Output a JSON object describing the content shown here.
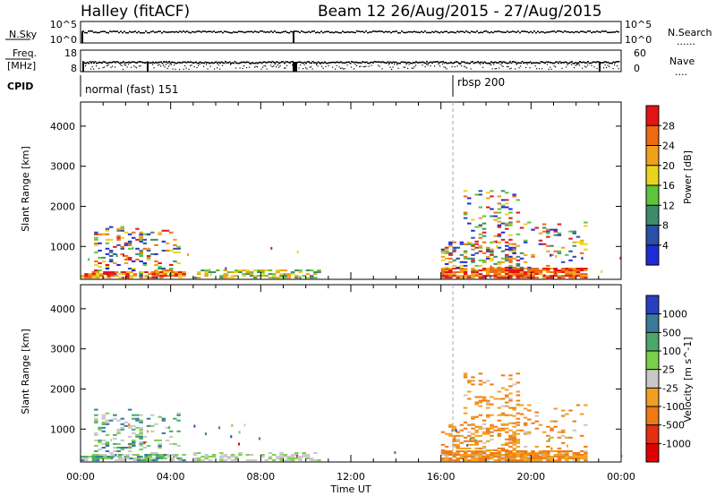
{
  "title": {
    "left": "Halley (fitACF)",
    "right": "Beam 12 26/Aug/2015 - 27/Aug/2015"
  },
  "nsky_panel": {
    "left_label": "N.Sky",
    "left_ticks": [
      "10^5",
      "10^0"
    ],
    "right_ticks": [
      "10^5",
      "10^0"
    ],
    "right_label": "N.Search",
    "right_marker": "......"
  },
  "freq_panel": {
    "left_label_1": "Freq.",
    "left_label_2": "[MHz]",
    "left_ticks": [
      "18",
      "8"
    ],
    "right_ticks": [
      "60",
      "0"
    ],
    "right_label": "Nave",
    "right_marker": "...."
  },
  "cpid": {
    "label": "CPID",
    "modes": [
      {
        "name": "normal (fast) 151",
        "start_hour": 0
      },
      {
        "name": "rbsp 200",
        "start_hour": 16.5
      }
    ]
  },
  "axes": {
    "ylabel": "Slant Range [km]",
    "yticks": [
      "1000",
      "2000",
      "3000",
      "4000"
    ],
    "xticks": [
      "00:00",
      "04:00",
      "08:00",
      "12:00",
      "16:00",
      "20:00",
      "00:00"
    ],
    "xlabel": "Time UT"
  },
  "colors": {
    "power": [
      "#1f2bd6",
      "#2a4fa8",
      "#3f8a6a",
      "#5ec43c",
      "#e8d41c",
      "#f0a01a",
      "#ee6a12",
      "#e51414"
    ],
    "velocity": [
      "#2a3fc0",
      "#3a7a9a",
      "#4aa86a",
      "#7ad04a",
      "#c8c8c8",
      "#f0a020",
      "#ee7a14",
      "#e53010",
      "#e00000"
    ]
  },
  "chart_data": [
    {
      "type": "heatmap",
      "title": "Power",
      "colorbar_label": "Power [dB]",
      "colorbar_ticks": [
        "4",
        "8",
        "12",
        "16",
        "20",
        "24",
        "28"
      ],
      "xlabel": "",
      "ylabel": "Slant Range [km]",
      "xlim_hours": [
        0,
        24
      ],
      "ylim": [
        180,
        4600
      ],
      "series": [
        {
          "start_hour": 0.0,
          "end_hour": 2.5,
          "min_km": 180,
          "max_km": 1500,
          "level": "mixed"
        },
        {
          "start_hour": 2.0,
          "end_hour": 4.5,
          "min_km": 180,
          "max_km": 1400,
          "level": "mixed"
        },
        {
          "start_hour": 5.0,
          "end_hour": 10.5,
          "min_km": 180,
          "max_km": 450,
          "level": "mixed"
        },
        {
          "start_hour": 16.0,
          "end_hour": 22.5,
          "min_km": 180,
          "max_km": 2400,
          "level": "mixed"
        }
      ]
    },
    {
      "type": "heatmap",
      "title": "Velocity",
      "colorbar_label": "Velocity [m s^-1]",
      "colorbar_ticks": [
        "1000",
        "500",
        "100",
        "25",
        "-25",
        "-100",
        "-500",
        "-1000"
      ],
      "xlabel": "Time UT",
      "ylabel": "Slant Range [km]",
      "xlim_hours": [
        0,
        24
      ],
      "ylim": [
        180,
        4600
      ],
      "series": [
        {
          "start_hour": 0.0,
          "end_hour": 2.5,
          "min_km": 180,
          "max_km": 1500,
          "level": "mixed"
        },
        {
          "start_hour": 2.0,
          "end_hour": 4.5,
          "min_km": 180,
          "max_km": 1400,
          "level": "mixed"
        },
        {
          "start_hour": 5.0,
          "end_hour": 10.5,
          "min_km": 180,
          "max_km": 450,
          "level": "mixed"
        },
        {
          "start_hour": 16.0,
          "end_hour": 22.5,
          "min_km": 180,
          "max_km": 2400,
          "level": "mixed"
        }
      ]
    }
  ]
}
